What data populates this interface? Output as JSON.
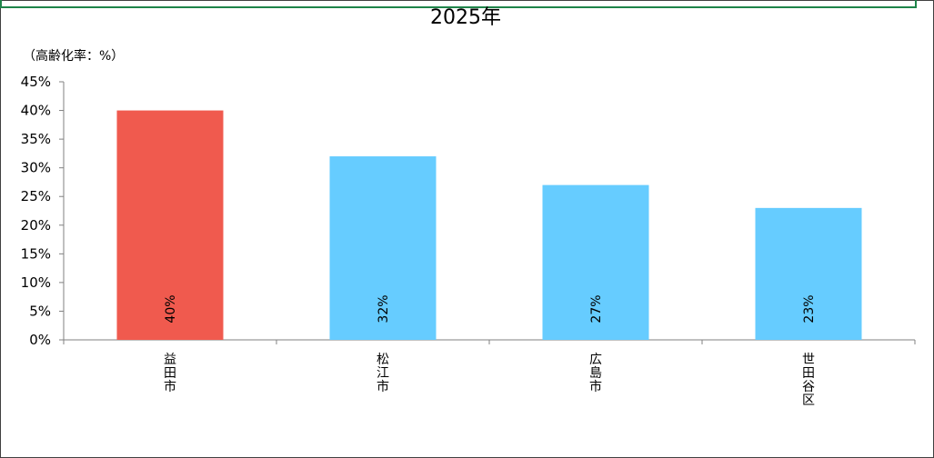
{
  "chart_data": {
    "type": "bar",
    "title": "2025年",
    "ylabel": "（高齢化率：%）",
    "xlabel": "",
    "categories": [
      "益田市",
      "松江市",
      "広島市",
      "世田谷区"
    ],
    "values": [
      40,
      32,
      27,
      23
    ],
    "value_labels": [
      "40%",
      "32%",
      "27%",
      "23%"
    ],
    "bar_colors": [
      "#F05A4E",
      "#66CCFF",
      "#66CCFF",
      "#66CCFF"
    ],
    "yticks": [
      0,
      5,
      10,
      15,
      20,
      25,
      30,
      35,
      40,
      45
    ],
    "ytick_labels": [
      "0%",
      "5%",
      "10%",
      "15%",
      "20%",
      "25%",
      "30%",
      "35%",
      "40%",
      "45%"
    ],
    "ylim": [
      0,
      45
    ],
    "grid": false,
    "legend": "none"
  },
  "colors": {
    "frame_border": "#1E8449",
    "outer_border": "#404040"
  }
}
